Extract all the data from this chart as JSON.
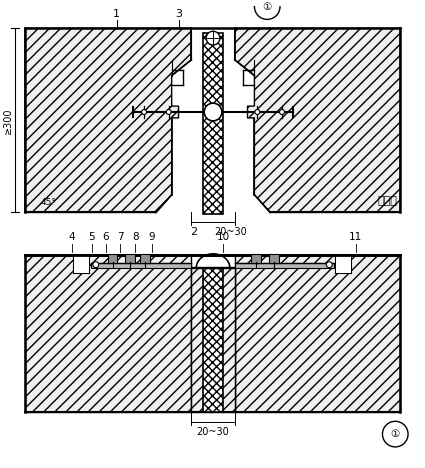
{
  "background": "#ffffff",
  "line_color": "#000000",
  "fig_width": 4.25,
  "fig_height": 4.68,
  "dpi": 100,
  "concrete_fc": "#f0f0f0",
  "concrete_hatch": "///",
  "ws_hatch": "xxxx"
}
